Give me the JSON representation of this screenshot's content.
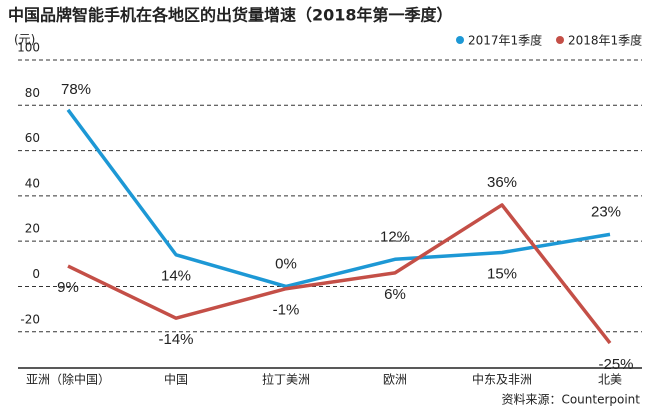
{
  "chart_data": {
    "type": "line",
    "title": "中国品牌智能手机在各地区的出货量增速（2018年第一季度）",
    "unit_label": "(元)",
    "source": "资料来源：Counterpoint",
    "categories": [
      "亚洲（除中国）",
      "中国",
      "拉丁美洲",
      "欧洲",
      "中东及非洲",
      "北美"
    ],
    "series": [
      {
        "name": "2017年1季度",
        "color": "#1d98d5",
        "values": [
          78,
          14,
          0,
          12,
          15,
          23
        ],
        "value_labels": [
          "78%",
          "14%",
          "0%",
          "12%",
          "15%",
          "23%"
        ]
      },
      {
        "name": "2018年1季度",
        "color": "#c44f47",
        "values": [
          9,
          -14,
          -1,
          6,
          36,
          -25
        ],
        "value_labels": [
          "9%",
          "-14%",
          "-1%",
          "6%",
          "36%",
          "-25%"
        ]
      }
    ],
    "ylim": [
      -36,
      100
    ],
    "yticks": [
      100,
      80,
      60,
      40,
      20,
      0,
      -20
    ],
    "grid": true,
    "legend": "top-right"
  }
}
